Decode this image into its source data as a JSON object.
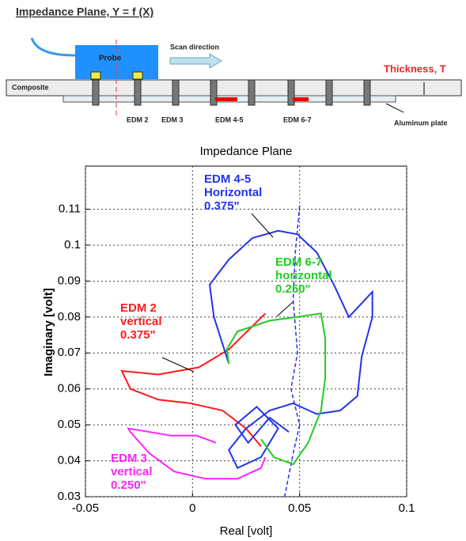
{
  "header": {
    "title": "Impedance Plane, Y = f (X)"
  },
  "diagram": {
    "probe": "Probe",
    "scan": "Scan direction",
    "thickness": "Thickness, T",
    "composite": "Composite",
    "edm2": "EDM 2",
    "edm3": "EDM 3",
    "edm45": "EDM 4-5",
    "edm67": "EDM 6-7",
    "plate": "Aluminum plate"
  },
  "chart_data": {
    "type": "line",
    "title": "Impedance Plane",
    "xlabel": "Real [volt]",
    "ylabel": "Imaginary [volt]",
    "xlim": [
      -0.05,
      0.1
    ],
    "xticks": [
      -0.05,
      0,
      0.05,
      0.1
    ],
    "ylim": [
      0.03,
      0.122
    ],
    "yticks": [
      0.03,
      0.04,
      0.05,
      0.06,
      0.07,
      0.08,
      0.09,
      0.1,
      0.11
    ],
    "grid": true,
    "series": [
      {
        "color": "#ff1a1a",
        "x": [
          0.034,
          0.017,
          0.003,
          -0.016,
          -0.033,
          -0.029,
          -0.016,
          -0.001,
          0.014,
          0.025,
          0.032
        ],
        "y": [
          0.081,
          0.071,
          0.066,
          0.064,
          0.065,
          0.06,
          0.057,
          0.056,
          0.054,
          0.049,
          0.044
        ]
      },
      {
        "color": "#ff22ff",
        "x": [
          0.011,
          0.002,
          -0.01,
          -0.02,
          -0.03,
          -0.029,
          -0.02,
          -0.0085,
          0.006,
          0.021,
          0.032,
          0.034
        ],
        "y": [
          0.045,
          0.047,
          0.047,
          0.048,
          0.049,
          0.048,
          0.042,
          0.037,
          0.035,
          0.035,
          0.038,
          0.041
        ]
      },
      {
        "color": "#2233ee",
        "x": [
          0.017,
          0.01,
          0.008,
          0.017,
          0.028,
          0.04,
          0.049,
          0.058,
          0.066,
          0.073,
          0.084,
          0.084,
          0.079,
          0.077,
          0.069,
          0.058,
          0.047,
          0.036,
          0.025,
          0.017,
          0.021,
          0.032,
          0.04,
          0.03,
          0.02,
          0.026,
          0.036,
          0.045
        ],
        "y": [
          0.067,
          0.08,
          0.089,
          0.096,
          0.102,
          0.104,
          0.103,
          0.098,
          0.089,
          0.08,
          0.087,
          0.08,
          0.069,
          0.058,
          0.054,
          0.053,
          0.056,
          0.054,
          0.049,
          0.043,
          0.038,
          0.041,
          0.049,
          0.055,
          0.05,
          0.045,
          0.052,
          0.048
        ]
      },
      {
        "color": "#2233ee",
        "dash": true,
        "x": [
          0.05,
          0.048,
          0.047,
          0.049,
          0.046,
          0.05,
          0.047,
          0.045,
          0.043
        ],
        "y": [
          0.111,
          0.098,
          0.085,
          0.07,
          0.06,
          0.05,
          0.042,
          0.036,
          0.03
        ]
      },
      {
        "color": "#22cc22",
        "x": [
          0.017,
          0.016,
          0.021,
          0.036,
          0.049,
          0.06,
          0.062,
          0.062,
          0.06,
          0.054,
          0.047,
          0.038,
          0.032
        ],
        "y": [
          0.067,
          0.071,
          0.076,
          0.079,
          0.08,
          0.081,
          0.074,
          0.063,
          0.054,
          0.045,
          0.039,
          0.041,
          0.046
        ]
      }
    ],
    "annotations": [
      {
        "color": "#ff1a1a",
        "lines": [
          "EDM 2",
          "vertical",
          "0.375\""
        ]
      },
      {
        "color": "#ff22ff",
        "lines": [
          "EDM 3",
          "vertical",
          "0.250\""
        ]
      },
      {
        "color": "#2233ee",
        "lines": [
          "EDM 4-5",
          "Horizontal",
          "0.375\""
        ]
      },
      {
        "color": "#22cc22",
        "lines": [
          "EDM 6-7",
          "horizontal",
          "0.250\""
        ]
      }
    ]
  }
}
